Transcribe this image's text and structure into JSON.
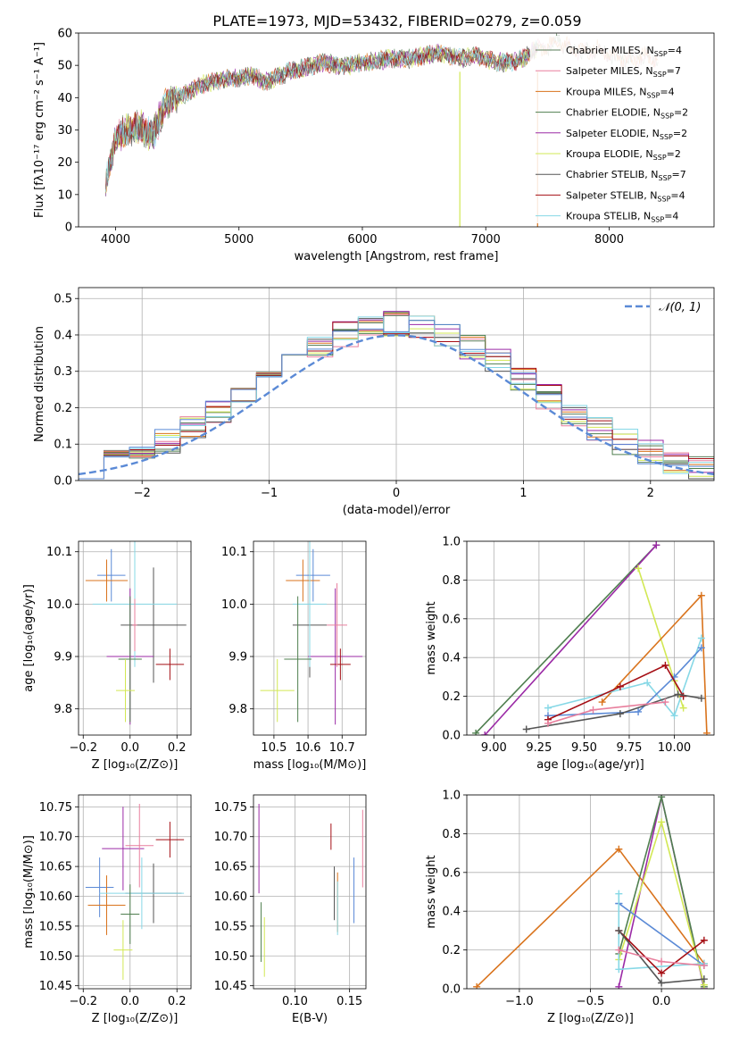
{
  "figure_title": "PLATE=1973, MJD=53432, FIBERID=0279, z=0.059",
  "colors": {
    "c1": "#5a7d5a",
    "c2": "#e87f9d",
    "c3": "#d9731c",
    "c4": "#4f7f4f",
    "c5": "#9b2aa6",
    "c6": "#d2e854",
    "c7": "#555555",
    "c8": "#a50f15",
    "c9": "#86d8e6",
    "c10": "#5b8ad6"
  },
  "chart_data": [
    {
      "id": "spectrum",
      "type": "line",
      "xlabel": "wavelength [Angstrom, rest frame]",
      "ylabel": "Flux [fλ10⁻¹⁷ erg cm⁻² s⁻¹ A⁻¹]",
      "xlim": [
        3700,
        8850
      ],
      "ylim": [
        0,
        60
      ],
      "xticks": [
        4000,
        5000,
        6000,
        7000,
        8000
      ],
      "yticks": [
        0,
        10,
        20,
        30,
        40,
        50,
        60
      ],
      "grid": false,
      "legend_position": "right",
      "legend": [
        {
          "label": "Chabrier MILES, N_SSP=4",
          "color": "#5a7d5a"
        },
        {
          "label": "Salpeter MILES, N_SSP=7",
          "color": "#e87f9d"
        },
        {
          "label": "Kroupa MILES, N_SSP=4",
          "color": "#d9731c"
        },
        {
          "label": "Chabrier ELODIE, N_SSP=2",
          "color": "#4f7f4f"
        },
        {
          "label": "Salpeter ELODIE, N_SSP=2",
          "color": "#9b2aa6"
        },
        {
          "label": "Kroupa ELODIE, N_SSP=2",
          "color": "#d2e854"
        },
        {
          "label": "Chabrier STELIB, N_SSP=7",
          "color": "#555555"
        },
        {
          "label": "Salpeter STELIB, N_SSP=4",
          "color": "#a50f15"
        },
        {
          "label": "Kroupa STELIB, N_SSP=4",
          "color": "#86d8e6"
        }
      ],
      "continuum": {
        "x": [
          3920,
          3960,
          4000,
          4100,
          4200,
          4300,
          4400,
          4500,
          4600,
          4700,
          4800,
          4900,
          5000,
          5100,
          5200,
          5300,
          5400,
          5500,
          5600,
          5700,
          5800,
          5900,
          6000,
          6100,
          6200,
          6300,
          6400,
          6500,
          6600,
          6700,
          6800,
          6900,
          7000,
          7100,
          7200,
          7300,
          7400,
          7500,
          7600,
          7700,
          7800,
          7900,
          8000,
          8100,
          8200,
          8300,
          8400
        ],
        "y": [
          15,
          20,
          28,
          30,
          31,
          28,
          38,
          40,
          42,
          44,
          45,
          46,
          46,
          47,
          45,
          46,
          48,
          49,
          50,
          51,
          50,
          50,
          51,
          51,
          52,
          52,
          52,
          53,
          54,
          53,
          52,
          53,
          52,
          51,
          51,
          52,
          55,
          56,
          57,
          55,
          54,
          55,
          53,
          52,
          52,
          53,
          52
        ]
      },
      "dropouts": [
        {
          "x": 6790,
          "color": "#d2e854"
        },
        {
          "x": 7420,
          "color": "#d9731c"
        }
      ]
    },
    {
      "id": "residuals",
      "type": "histogram",
      "xlabel": "(data-model)/error",
      "ylabel": "Normed distribution",
      "xlim": [
        -2.5,
        2.5
      ],
      "ylim": [
        0,
        0.53
      ],
      "xticks": [
        -2,
        -1,
        0,
        1,
        2
      ],
      "yticks": [
        0.0,
        0.1,
        0.2,
        0.3,
        0.4,
        0.5
      ],
      "grid": true,
      "reference_curve": {
        "label": "𝒩(0, 1)",
        "mean": 0,
        "sigma": 1,
        "style": "dashed",
        "color": "#5b8ad6"
      },
      "legend_position": "top-right",
      "bin_edges": [
        -2.5,
        -2.3,
        -2.1,
        -1.9,
        -1.7,
        -1.5,
        -1.3,
        -1.1,
        -0.9,
        -0.7,
        -0.5,
        -0.3,
        -0.1,
        0.1,
        0.3,
        0.5,
        0.7,
        0.9,
        1.1,
        1.3,
        1.5,
        1.7,
        1.9,
        2.1,
        2.3,
        2.5
      ]
    },
    {
      "id": "age_vs_Z",
      "type": "errorbar",
      "xlabel": "Z [log₁₀(Z/Z⊙)]",
      "ylabel": "age  [log₁₀(age/yr)]",
      "xlim": [
        -0.22,
        0.26
      ],
      "ylim": [
        9.75,
        10.12
      ],
      "xticks": [
        -0.2,
        0.0,
        0.2
      ],
      "yticks": [
        9.8,
        9.9,
        10.0,
        10.1
      ],
      "grid": true,
      "points": [
        {
          "x": -0.08,
          "y": 10.055,
          "xerr": 0.06,
          "yerr": 0.05,
          "color": "#5b8ad6"
        },
        {
          "x": -0.1,
          "y": 10.045,
          "xerr": 0.09,
          "yerr": 0.04,
          "color": "#d9731c"
        },
        {
          "x": 0.1,
          "y": 9.96,
          "xerr": 0.14,
          "yerr": 0.11,
          "color": "#555555"
        },
        {
          "x": 0.0,
          "y": 9.9,
          "xerr": 0.1,
          "yerr": 0.13,
          "color": "#9b2aa6"
        },
        {
          "x": 0.02,
          "y": 10.0,
          "xerr": 0.18,
          "yerr": 0.12,
          "color": "#86d8e6"
        },
        {
          "x": 0.0,
          "y": 9.895,
          "xerr": 0.05,
          "yerr": 0.12,
          "color": "#4f7f4f"
        },
        {
          "x": 0.17,
          "y": 9.885,
          "xerr": 0.06,
          "yerr": 0.03,
          "color": "#a50f15"
        },
        {
          "x": -0.02,
          "y": 9.835,
          "xerr": 0.04,
          "yerr": 0.06,
          "color": "#d2e854"
        },
        {
          "x": 0.02,
          "y": 9.96,
          "xerr": 0.01,
          "yerr": 0.05,
          "color": "#e87f9d"
        }
      ]
    },
    {
      "id": "age_vs_mass",
      "type": "errorbar",
      "xlabel": "mass [log₁₀(M/M⊙)]",
      "ylabel": "",
      "xlim": [
        10.44,
        10.77
      ],
      "ylim": [
        9.75,
        10.12
      ],
      "xticks": [
        10.5,
        10.6,
        10.7
      ],
      "yticks": [
        9.8,
        9.9,
        10.0,
        10.1
      ],
      "grid": true,
      "points": [
        {
          "x": 10.615,
          "y": 10.055,
          "xerr": 0.05,
          "yerr": 0.05,
          "color": "#5b8ad6"
        },
        {
          "x": 10.585,
          "y": 10.045,
          "xerr": 0.05,
          "yerr": 0.04,
          "color": "#d9731c"
        },
        {
          "x": 10.605,
          "y": 9.96,
          "xerr": 0.05,
          "yerr": 0.1,
          "color": "#555555"
        },
        {
          "x": 10.68,
          "y": 9.9,
          "xerr": 0.08,
          "yerr": 0.13,
          "color": "#9b2aa6"
        },
        {
          "x": 10.605,
          "y": 10.0,
          "xerr": 0.05,
          "yerr": 0.12,
          "color": "#86d8e6"
        },
        {
          "x": 10.57,
          "y": 9.895,
          "xerr": 0.04,
          "yerr": 0.12,
          "color": "#4f7f4f"
        },
        {
          "x": 10.695,
          "y": 9.885,
          "xerr": 0.03,
          "yerr": 0.03,
          "color": "#a50f15"
        },
        {
          "x": 10.51,
          "y": 9.835,
          "xerr": 0.05,
          "yerr": 0.06,
          "color": "#d2e854"
        },
        {
          "x": 10.685,
          "y": 9.96,
          "xerr": 0.03,
          "yerr": 0.08,
          "color": "#e87f9d"
        }
      ]
    },
    {
      "id": "weight_vs_age",
      "type": "line",
      "xlabel": "age  [log₁₀(age/yr)]",
      "ylabel": "mass weight",
      "xlim": [
        8.85,
        10.22
      ],
      "ylim": [
        0,
        1.0
      ],
      "xticks": [
        9.0,
        9.25,
        9.5,
        9.75,
        10.0
      ],
      "yticks": [
        0.0,
        0.2,
        0.4,
        0.6,
        0.8,
        1.0
      ],
      "grid": true,
      "series": [
        {
          "color": "#4f7f4f",
          "x": [
            8.9,
            9.9
          ],
          "y": [
            0.01,
            0.98
          ]
        },
        {
          "color": "#9b2aa6",
          "x": [
            8.95,
            9.9
          ],
          "y": [
            0.0,
            0.98
          ]
        },
        {
          "color": "#d2e854",
          "x": [
            9.8,
            10.0,
            10.05
          ],
          "y": [
            0.86,
            0.28,
            0.14
          ]
        },
        {
          "color": "#d9731c",
          "x": [
            9.6,
            10.15,
            10.18
          ],
          "y": [
            0.17,
            0.72,
            0.01
          ]
        },
        {
          "color": "#86d8e6",
          "x": [
            9.3,
            9.85,
            10.0,
            10.15
          ],
          "y": [
            0.14,
            0.27,
            0.1,
            0.5
          ]
        },
        {
          "color": "#5b8ad6",
          "x": [
            9.3,
            9.8,
            10.0,
            10.15
          ],
          "y": [
            0.1,
            0.12,
            0.3,
            0.45
          ]
        },
        {
          "color": "#a50f15",
          "x": [
            9.3,
            9.7,
            9.95,
            10.05
          ],
          "y": [
            0.08,
            0.25,
            0.36,
            0.2
          ]
        },
        {
          "color": "#555555",
          "x": [
            9.18,
            9.7,
            10.02,
            10.15
          ],
          "y": [
            0.03,
            0.11,
            0.21,
            0.19
          ]
        },
        {
          "color": "#e87f9d",
          "x": [
            9.3,
            9.55,
            9.95
          ],
          "y": [
            0.06,
            0.13,
            0.17
          ]
        }
      ]
    },
    {
      "id": "mass_vs_Z",
      "type": "errorbar",
      "xlabel": "Z [log₁₀(Z/Z⊙)]",
      "ylabel": "mass [log₁₀(M/M⊙)]",
      "xlim": [
        -0.22,
        0.26
      ],
      "ylim": [
        10.445,
        10.77
      ],
      "xticks": [
        -0.2,
        0.0,
        0.2
      ],
      "yticks": [
        10.45,
        10.5,
        10.55,
        10.6,
        10.65,
        10.7,
        10.75
      ],
      "grid": true,
      "points": [
        {
          "x": -0.13,
          "y": 10.615,
          "xerr": 0.06,
          "yerr": 0.05,
          "color": "#5b8ad6"
        },
        {
          "x": -0.1,
          "y": 10.585,
          "xerr": 0.08,
          "yerr": 0.05,
          "color": "#d9731c"
        },
        {
          "x": 0.1,
          "y": 10.605,
          "xerr": 0.12,
          "yerr": 0.05,
          "color": "#555555"
        },
        {
          "x": -0.03,
          "y": 10.68,
          "xerr": 0.09,
          "yerr": 0.07,
          "color": "#9b2aa6"
        },
        {
          "x": 0.05,
          "y": 10.605,
          "xerr": 0.18,
          "yerr": 0.06,
          "color": "#86d8e6"
        },
        {
          "x": 0.0,
          "y": 10.57,
          "xerr": 0.04,
          "yerr": 0.05,
          "color": "#4f7f4f"
        },
        {
          "x": 0.17,
          "y": 10.695,
          "xerr": 0.06,
          "yerr": 0.03,
          "color": "#a50f15"
        },
        {
          "x": -0.03,
          "y": 10.51,
          "xerr": 0.04,
          "yerr": 0.05,
          "color": "#d2e854"
        },
        {
          "x": 0.04,
          "y": 10.685,
          "xerr": 0.06,
          "yerr": 0.07,
          "color": "#e87f9d"
        }
      ]
    },
    {
      "id": "mass_vs_EBV",
      "type": "errorbar",
      "xlabel": "E(B-V)",
      "ylabel": "",
      "xlim": [
        0.062,
        0.165
      ],
      "ylim": [
        10.445,
        10.77
      ],
      "xticks": [
        0.1,
        0.15
      ],
      "yticks": [
        10.45,
        10.5,
        10.55,
        10.6,
        10.65,
        10.7,
        10.75
      ],
      "grid": true,
      "points": [
        {
          "x": 0.154,
          "y": 10.61,
          "xerr": 0,
          "yerr": 0.055,
          "color": "#5b8ad6"
        },
        {
          "x": 0.139,
          "y": 10.59,
          "xerr": 0,
          "yerr": 0.05,
          "color": "#d9731c"
        },
        {
          "x": 0.136,
          "y": 10.605,
          "xerr": 0,
          "yerr": 0.045,
          "color": "#555555"
        },
        {
          "x": 0.067,
          "y": 10.68,
          "xerr": 0,
          "yerr": 0.075,
          "color": "#9b2aa6"
        },
        {
          "x": 0.139,
          "y": 10.58,
          "xerr": 0,
          "yerr": 0.045,
          "color": "#86d8e6"
        },
        {
          "x": 0.069,
          "y": 10.54,
          "xerr": 0,
          "yerr": 0.05,
          "color": "#4f7f4f"
        },
        {
          "x": 0.133,
          "y": 10.7,
          "xerr": 0,
          "yerr": 0.022,
          "color": "#a50f15"
        },
        {
          "x": 0.072,
          "y": 10.515,
          "xerr": 0,
          "yerr": 0.05,
          "color": "#d2e854"
        },
        {
          "x": 0.162,
          "y": 10.68,
          "xerr": 0,
          "yerr": 0.065,
          "color": "#e87f9d"
        }
      ]
    },
    {
      "id": "weight_vs_Z",
      "type": "line",
      "xlabel": "Z [log₁₀(Z/Z⊙)]",
      "ylabel": "mass weight",
      "xlim": [
        -1.37,
        0.37
      ],
      "ylim": [
        0,
        1.0
      ],
      "xticks": [
        -1.0,
        -0.5,
        0.0
      ],
      "yticks": [
        0.0,
        0.2,
        0.4,
        0.6,
        0.8,
        1.0
      ],
      "grid": true,
      "series": [
        {
          "color": "#d9731c",
          "x": [
            -1.3,
            -0.3,
            0.3
          ],
          "y": [
            0.01,
            0.72,
            0.13
          ]
        },
        {
          "color": "#9b2aa6",
          "x": [
            -0.3,
            0.0,
            0.3
          ],
          "y": [
            0.01,
            0.99,
            0.0
          ]
        },
        {
          "color": "#4f7f4f",
          "x": [
            -0.3,
            0.0,
            0.3
          ],
          "y": [
            0.18,
            0.99,
            0.01
          ]
        },
        {
          "color": "#d2e854",
          "x": [
            -0.3,
            0.0,
            0.3
          ],
          "y": [
            0.15,
            0.86,
            0.02
          ]
        },
        {
          "color": "#5b8ad6",
          "x": [
            -0.3,
            -0.3,
            0.3
          ],
          "y": [
            0.44,
            0.44,
            0.12
          ]
        },
        {
          "color": "#86d8e6",
          "x": [
            -0.3,
            -0.3,
            0.3
          ],
          "y": [
            0.49,
            0.1,
            0.13
          ]
        },
        {
          "color": "#a50f15",
          "x": [
            -0.3,
            0.0,
            0.3
          ],
          "y": [
            0.3,
            0.08,
            0.25
          ]
        },
        {
          "color": "#555555",
          "x": [
            -0.3,
            0.0,
            0.3
          ],
          "y": [
            0.3,
            0.03,
            0.05
          ]
        },
        {
          "color": "#e87f9d",
          "x": [
            -0.3,
            0.0,
            0.3
          ],
          "y": [
            0.2,
            0.14,
            0.12
          ]
        }
      ]
    }
  ]
}
